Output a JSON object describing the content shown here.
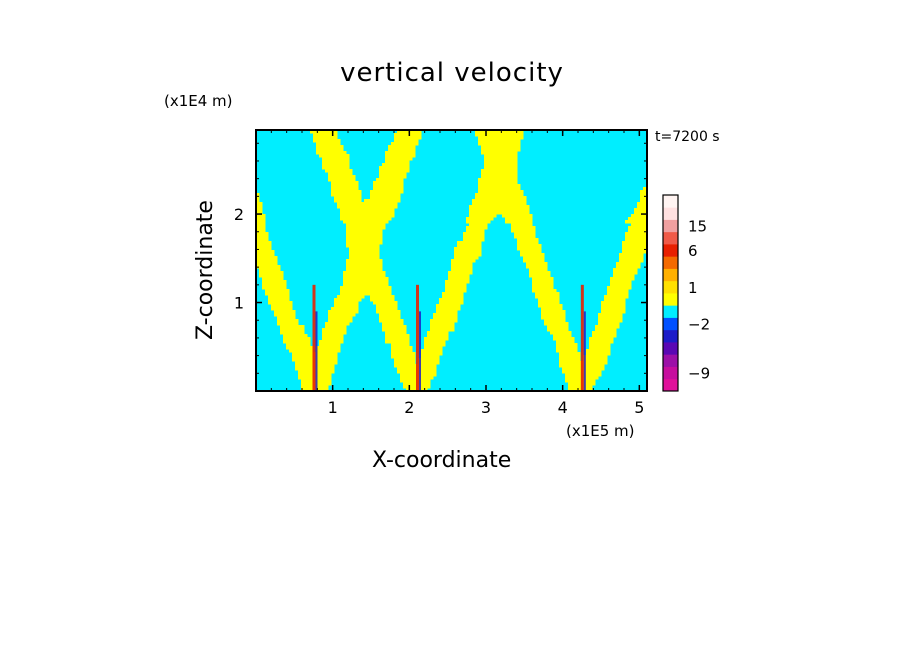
{
  "chart_data": {
    "type": "heatmap",
    "title": "vertical velocity",
    "xlabel": "X-coordinate",
    "ylabel": "Z-coordinate",
    "x_units": "(x1E5 m)",
    "y_units": "(x1E4 m)",
    "time_label": "t=7200 s",
    "xlim": [
      0,
      5.1
    ],
    "ylim": [
      0,
      2.95
    ],
    "x_ticks": [
      1,
      2,
      3,
      4,
      5
    ],
    "y_ticks": [
      1,
      2
    ],
    "colorbar": {
      "levels": [
        {
          "value": -12,
          "color": "#e0109a"
        },
        {
          "value": -9,
          "color": "#c60e9e"
        },
        {
          "value": -6,
          "color": "#9c10a8"
        },
        {
          "value": -4,
          "color": "#5a08b4"
        },
        {
          "value": -3,
          "color": "#1c1cc8"
        },
        {
          "value": -2,
          "color": "#0050ff"
        },
        {
          "value": -1,
          "color": "#00eeff"
        },
        {
          "value": 0,
          "color": "#ffff00"
        },
        {
          "value": 1,
          "color": "#ffe000"
        },
        {
          "value": 2,
          "color": "#ffb000"
        },
        {
          "value": 4,
          "color": "#f46a00"
        },
        {
          "value": 6,
          "color": "#e82000"
        },
        {
          "value": 10,
          "color": "#f05a48"
        },
        {
          "value": 15,
          "color": "#f0a0a0"
        },
        {
          "value": 20,
          "color": "#ffe0e0"
        },
        {
          "value": 24,
          "color": "#fff4f2"
        }
      ],
      "labels": [
        {
          "text": "15",
          "value": 15
        },
        {
          "text": "6",
          "value": 6
        },
        {
          "text": "1",
          "value": 1
        },
        {
          "text": "−2",
          "value": -2
        },
        {
          "text": "−9",
          "value": -9
        }
      ]
    },
    "field_colors": {
      "downdraft": "#00eeff",
      "updraft": "#ffff00"
    },
    "convergence_centers_x": [
      0.75,
      2.1,
      4.25
    ]
  }
}
